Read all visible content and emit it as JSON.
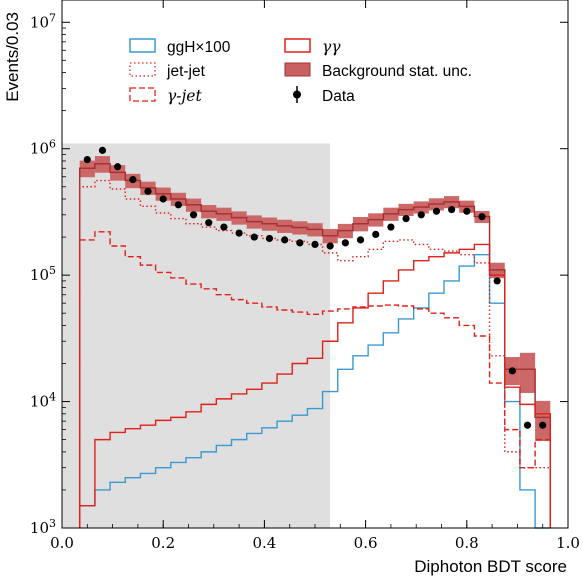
{
  "chart_data": {
    "type": "histogram",
    "xlabel": "Diphoton BDT score",
    "ylabel": "Events/0.03",
    "xlim": [
      0.0,
      1.0
    ],
    "ylim": [
      1000,
      15000000
    ],
    "yscale": "log",
    "xticks": [
      {
        "v": 0.0,
        "label": "0.0"
      },
      {
        "v": 0.2,
        "label": "0.2"
      },
      {
        "v": 0.4,
        "label": "0.4"
      },
      {
        "v": 0.6,
        "label": "0.6"
      },
      {
        "v": 0.8,
        "label": "0.8"
      },
      {
        "v": 1.0,
        "label": "1.0"
      }
    ],
    "yticks": [
      {
        "v": 1000,
        "base": "10",
        "exp": "3"
      },
      {
        "v": 10000,
        "base": "10",
        "exp": "4"
      },
      {
        "v": 100000,
        "base": "10",
        "exp": "5"
      },
      {
        "v": 1000000,
        "base": "10",
        "exp": "6"
      },
      {
        "v": 10000000,
        "base": "10",
        "exp": "7"
      }
    ],
    "shaded_region": [
      0.0,
      0.53
    ],
    "bin_edges": [
      0.035,
      0.065,
      0.095,
      0.125,
      0.155,
      0.185,
      0.215,
      0.245,
      0.275,
      0.305,
      0.335,
      0.365,
      0.395,
      0.425,
      0.455,
      0.485,
      0.515,
      0.545,
      0.575,
      0.605,
      0.635,
      0.665,
      0.695,
      0.725,
      0.755,
      0.785,
      0.815,
      0.845,
      0.875,
      0.905,
      0.935,
      0.965
    ],
    "series": [
      {
        "name": "ggH×100",
        "style": "solid",
        "color": "#3a9ad0",
        "values": [
          1500,
          2000,
          2300,
          2500,
          2700,
          3000,
          3300,
          3600,
          4000,
          4500,
          5000,
          5600,
          6200,
          7000,
          7800,
          8800,
          12000,
          18000,
          23000,
          28000,
          35000,
          45000,
          55000,
          72000,
          90000,
          118000,
          145000,
          60000,
          10000,
          2000,
          800
        ]
      },
      {
        "name": "jet-jet",
        "style": "dotted",
        "color": "#e0201a",
        "values": [
          500000,
          560000,
          480000,
          400000,
          350000,
          310000,
          280000,
          255000,
          240000,
          225000,
          215000,
          205000,
          195000,
          190000,
          185000,
          175000,
          150000,
          130000,
          140000,
          160000,
          185000,
          190000,
          175000,
          160000,
          155000,
          145000,
          125000,
          23000,
          4000,
          3000,
          3000
        ]
      },
      {
        "name": "γ-jet",
        "style": "dashed",
        "color": "#e0201a",
        "values": [
          190000,
          220000,
          170000,
          140000,
          120000,
          105000,
          95000,
          85000,
          78000,
          70000,
          64000,
          60000,
          56000,
          53000,
          51000,
          49000,
          52000,
          54000,
          56000,
          57000,
          58000,
          57000,
          54000,
          50000,
          46000,
          40000,
          33000,
          14000,
          6000,
          3000,
          5000
        ]
      },
      {
        "name": "γγ",
        "style": "solid",
        "color": "#e0201a",
        "values": [
          1500,
          5000,
          5700,
          6100,
          6500,
          7100,
          7500,
          8300,
          9500,
          10500,
          11500,
          12500,
          14000,
          16500,
          20000,
          22000,
          30000,
          42000,
          55000,
          72000,
          90000,
          110000,
          130000,
          140000,
          150000,
          160000,
          175000,
          100000,
          13000,
          9500,
          8000
        ]
      }
    ],
    "total_band": {
      "name": "Background stat. unc.",
      "color": "#a83232",
      "fill": "#c96060",
      "values": [
        700000,
        760000,
        650000,
        560000,
        490000,
        440000,
        400000,
        360000,
        320000,
        305000,
        285000,
        265000,
        255000,
        245000,
        238000,
        230000,
        205000,
        225000,
        255000,
        275000,
        305000,
        330000,
        345000,
        365000,
        380000,
        350000,
        290000,
        110000,
        18000,
        18000,
        7500
      ],
      "rel_err": [
        0.15,
        0.15,
        0.14,
        0.13,
        0.12,
        0.12,
        0.12,
        0.12,
        0.12,
        0.12,
        0.12,
        0.12,
        0.12,
        0.12,
        0.12,
        0.12,
        0.13,
        0.13,
        0.13,
        0.12,
        0.12,
        0.11,
        0.11,
        0.11,
        0.11,
        0.11,
        0.11,
        0.14,
        0.25,
        0.35,
        0.35
      ]
    },
    "data": {
      "name": "Data",
      "x": [
        0.05,
        0.08,
        0.11,
        0.14,
        0.17,
        0.2,
        0.23,
        0.26,
        0.29,
        0.32,
        0.35,
        0.38,
        0.41,
        0.44,
        0.47,
        0.5,
        0.53,
        0.56,
        0.59,
        0.62,
        0.65,
        0.68,
        0.71,
        0.74,
        0.77,
        0.8,
        0.83,
        0.86,
        0.89,
        0.92,
        0.95
      ],
      "y": [
        820000,
        970000,
        720000,
        570000,
        460000,
        400000,
        360000,
        300000,
        260000,
        240000,
        215000,
        200000,
        195000,
        190000,
        180000,
        175000,
        170000,
        180000,
        190000,
        210000,
        240000,
        280000,
        300000,
        320000,
        330000,
        320000,
        290000,
        90000,
        17500,
        6500,
        6500
      ]
    }
  }
}
